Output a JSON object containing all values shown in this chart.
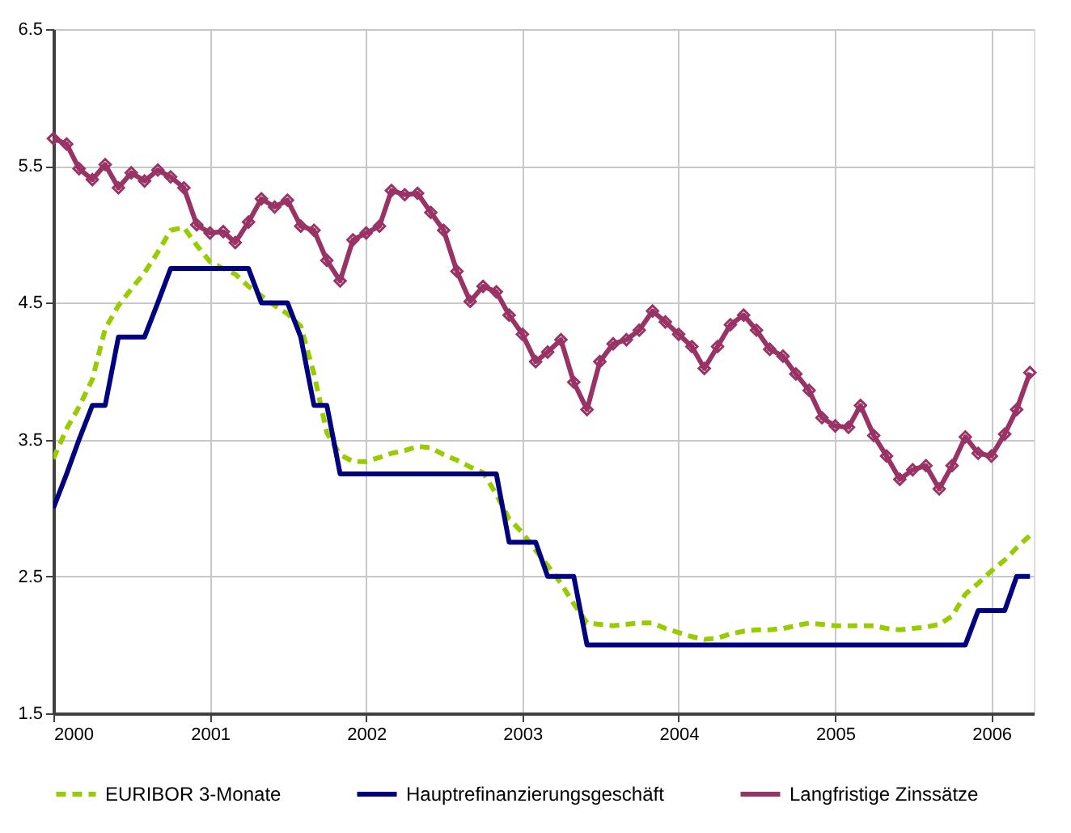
{
  "chart_data": {
    "type": "line",
    "x": [
      "2000-01",
      "2000-02",
      "2000-03",
      "2000-04",
      "2000-05",
      "2000-06",
      "2000-07",
      "2000-08",
      "2000-09",
      "2000-10",
      "2000-11",
      "2000-12",
      "2001-01",
      "2001-02",
      "2001-03",
      "2001-04",
      "2001-05",
      "2001-06",
      "2001-07",
      "2001-08",
      "2001-09",
      "2001-10",
      "2001-11",
      "2001-12",
      "2002-01",
      "2002-02",
      "2002-03",
      "2002-04",
      "2002-05",
      "2002-06",
      "2002-07",
      "2002-08",
      "2002-09",
      "2002-10",
      "2002-11",
      "2002-12",
      "2003-01",
      "2003-02",
      "2003-03",
      "2003-04",
      "2003-05",
      "2003-06",
      "2003-07",
      "2003-08",
      "2003-09",
      "2003-10",
      "2003-11",
      "2003-12",
      "2004-01",
      "2004-02",
      "2004-03",
      "2004-04",
      "2004-05",
      "2004-06",
      "2004-07",
      "2004-08",
      "2004-09",
      "2004-10",
      "2004-11",
      "2004-12",
      "2005-01",
      "2005-02",
      "2005-03",
      "2005-04",
      "2005-05",
      "2005-06",
      "2005-07",
      "2005-08",
      "2005-09",
      "2005-10",
      "2005-11",
      "2005-12",
      "2006-01",
      "2006-02",
      "2006-03",
      "2006-04"
    ],
    "series": [
      {
        "name": "EURIBOR 3-Monate",
        "color": "#99cc00",
        "line_style": "dashed",
        "marker": "none",
        "values": [
          3.36,
          3.58,
          3.74,
          3.94,
          4.31,
          4.48,
          4.6,
          4.72,
          4.87,
          5.03,
          5.05,
          4.92,
          4.8,
          4.75,
          4.71,
          4.62,
          4.55,
          4.48,
          4.42,
          4.33,
          3.98,
          3.55,
          3.39,
          3.34,
          3.34,
          3.37,
          3.4,
          3.42,
          3.45,
          3.44,
          3.39,
          3.35,
          3.3,
          3.26,
          3.1,
          2.92,
          2.82,
          2.69,
          2.58,
          2.45,
          2.3,
          2.16,
          2.15,
          2.14,
          2.15,
          2.16,
          2.16,
          2.12,
          2.09,
          2.06,
          2.04,
          2.05,
          2.08,
          2.1,
          2.11,
          2.11,
          2.12,
          2.14,
          2.16,
          2.15,
          2.14,
          2.14,
          2.14,
          2.14,
          2.12,
          2.11,
          2.12,
          2.13,
          2.15,
          2.21,
          2.37,
          2.45,
          2.54,
          2.62,
          2.71,
          2.8
        ]
      },
      {
        "name": "Hauptrefinanzierungsgeschäft",
        "color": "#000080",
        "line_style": "solid",
        "marker": "none",
        "values": [
          3.0,
          3.25,
          3.5,
          3.75,
          3.75,
          4.25,
          4.25,
          4.25,
          4.5,
          4.75,
          4.75,
          4.75,
          4.75,
          4.75,
          4.75,
          4.75,
          4.5,
          4.5,
          4.5,
          4.25,
          3.75,
          3.75,
          3.25,
          3.25,
          3.25,
          3.25,
          3.25,
          3.25,
          3.25,
          3.25,
          3.25,
          3.25,
          3.25,
          3.25,
          3.25,
          2.75,
          2.75,
          2.75,
          2.5,
          2.5,
          2.5,
          2.0,
          2.0,
          2.0,
          2.0,
          2.0,
          2.0,
          2.0,
          2.0,
          2.0,
          2.0,
          2.0,
          2.0,
          2.0,
          2.0,
          2.0,
          2.0,
          2.0,
          2.0,
          2.0,
          2.0,
          2.0,
          2.0,
          2.0,
          2.0,
          2.0,
          2.0,
          2.0,
          2.0,
          2.0,
          2.0,
          2.25,
          2.25,
          2.25,
          2.5,
          2.5
        ]
      },
      {
        "name": "Langfristige Zinssätze",
        "color": "#993366",
        "line_style": "solid",
        "marker": "diamond",
        "values": [
          5.7,
          5.66,
          5.48,
          5.4,
          5.51,
          5.34,
          5.45,
          5.39,
          5.47,
          5.42,
          5.34,
          5.07,
          5.01,
          5.02,
          4.94,
          5.09,
          5.26,
          5.2,
          5.25,
          5.06,
          5.03,
          4.81,
          4.66,
          4.96,
          5.01,
          5.06,
          5.32,
          5.29,
          5.3,
          5.16,
          5.03,
          4.73,
          4.51,
          4.62,
          4.58,
          4.41,
          4.27,
          4.07,
          4.14,
          4.23,
          3.92,
          3.72,
          4.07,
          4.2,
          4.23,
          4.3,
          4.44,
          4.36,
          4.27,
          4.18,
          4.02,
          4.18,
          4.34,
          4.41,
          4.3,
          4.16,
          4.11,
          3.98,
          3.86,
          3.66,
          3.6,
          3.59,
          3.75,
          3.53,
          3.38,
          3.21,
          3.28,
          3.31,
          3.14,
          3.31,
          3.52,
          3.4,
          3.38,
          3.54,
          3.72,
          3.99
        ]
      }
    ],
    "xlim": [
      "2000-01-01",
      "2006-04-10"
    ],
    "xticks": [
      "2000",
      "2001",
      "2002",
      "2003",
      "2004",
      "2005",
      "2006"
    ],
    "ylim": [
      1.5,
      6.5
    ],
    "yticks": [
      1.5,
      2.5,
      3.5,
      4.5,
      5.5,
      6.5
    ],
    "grid": true,
    "legend": "bottom"
  }
}
